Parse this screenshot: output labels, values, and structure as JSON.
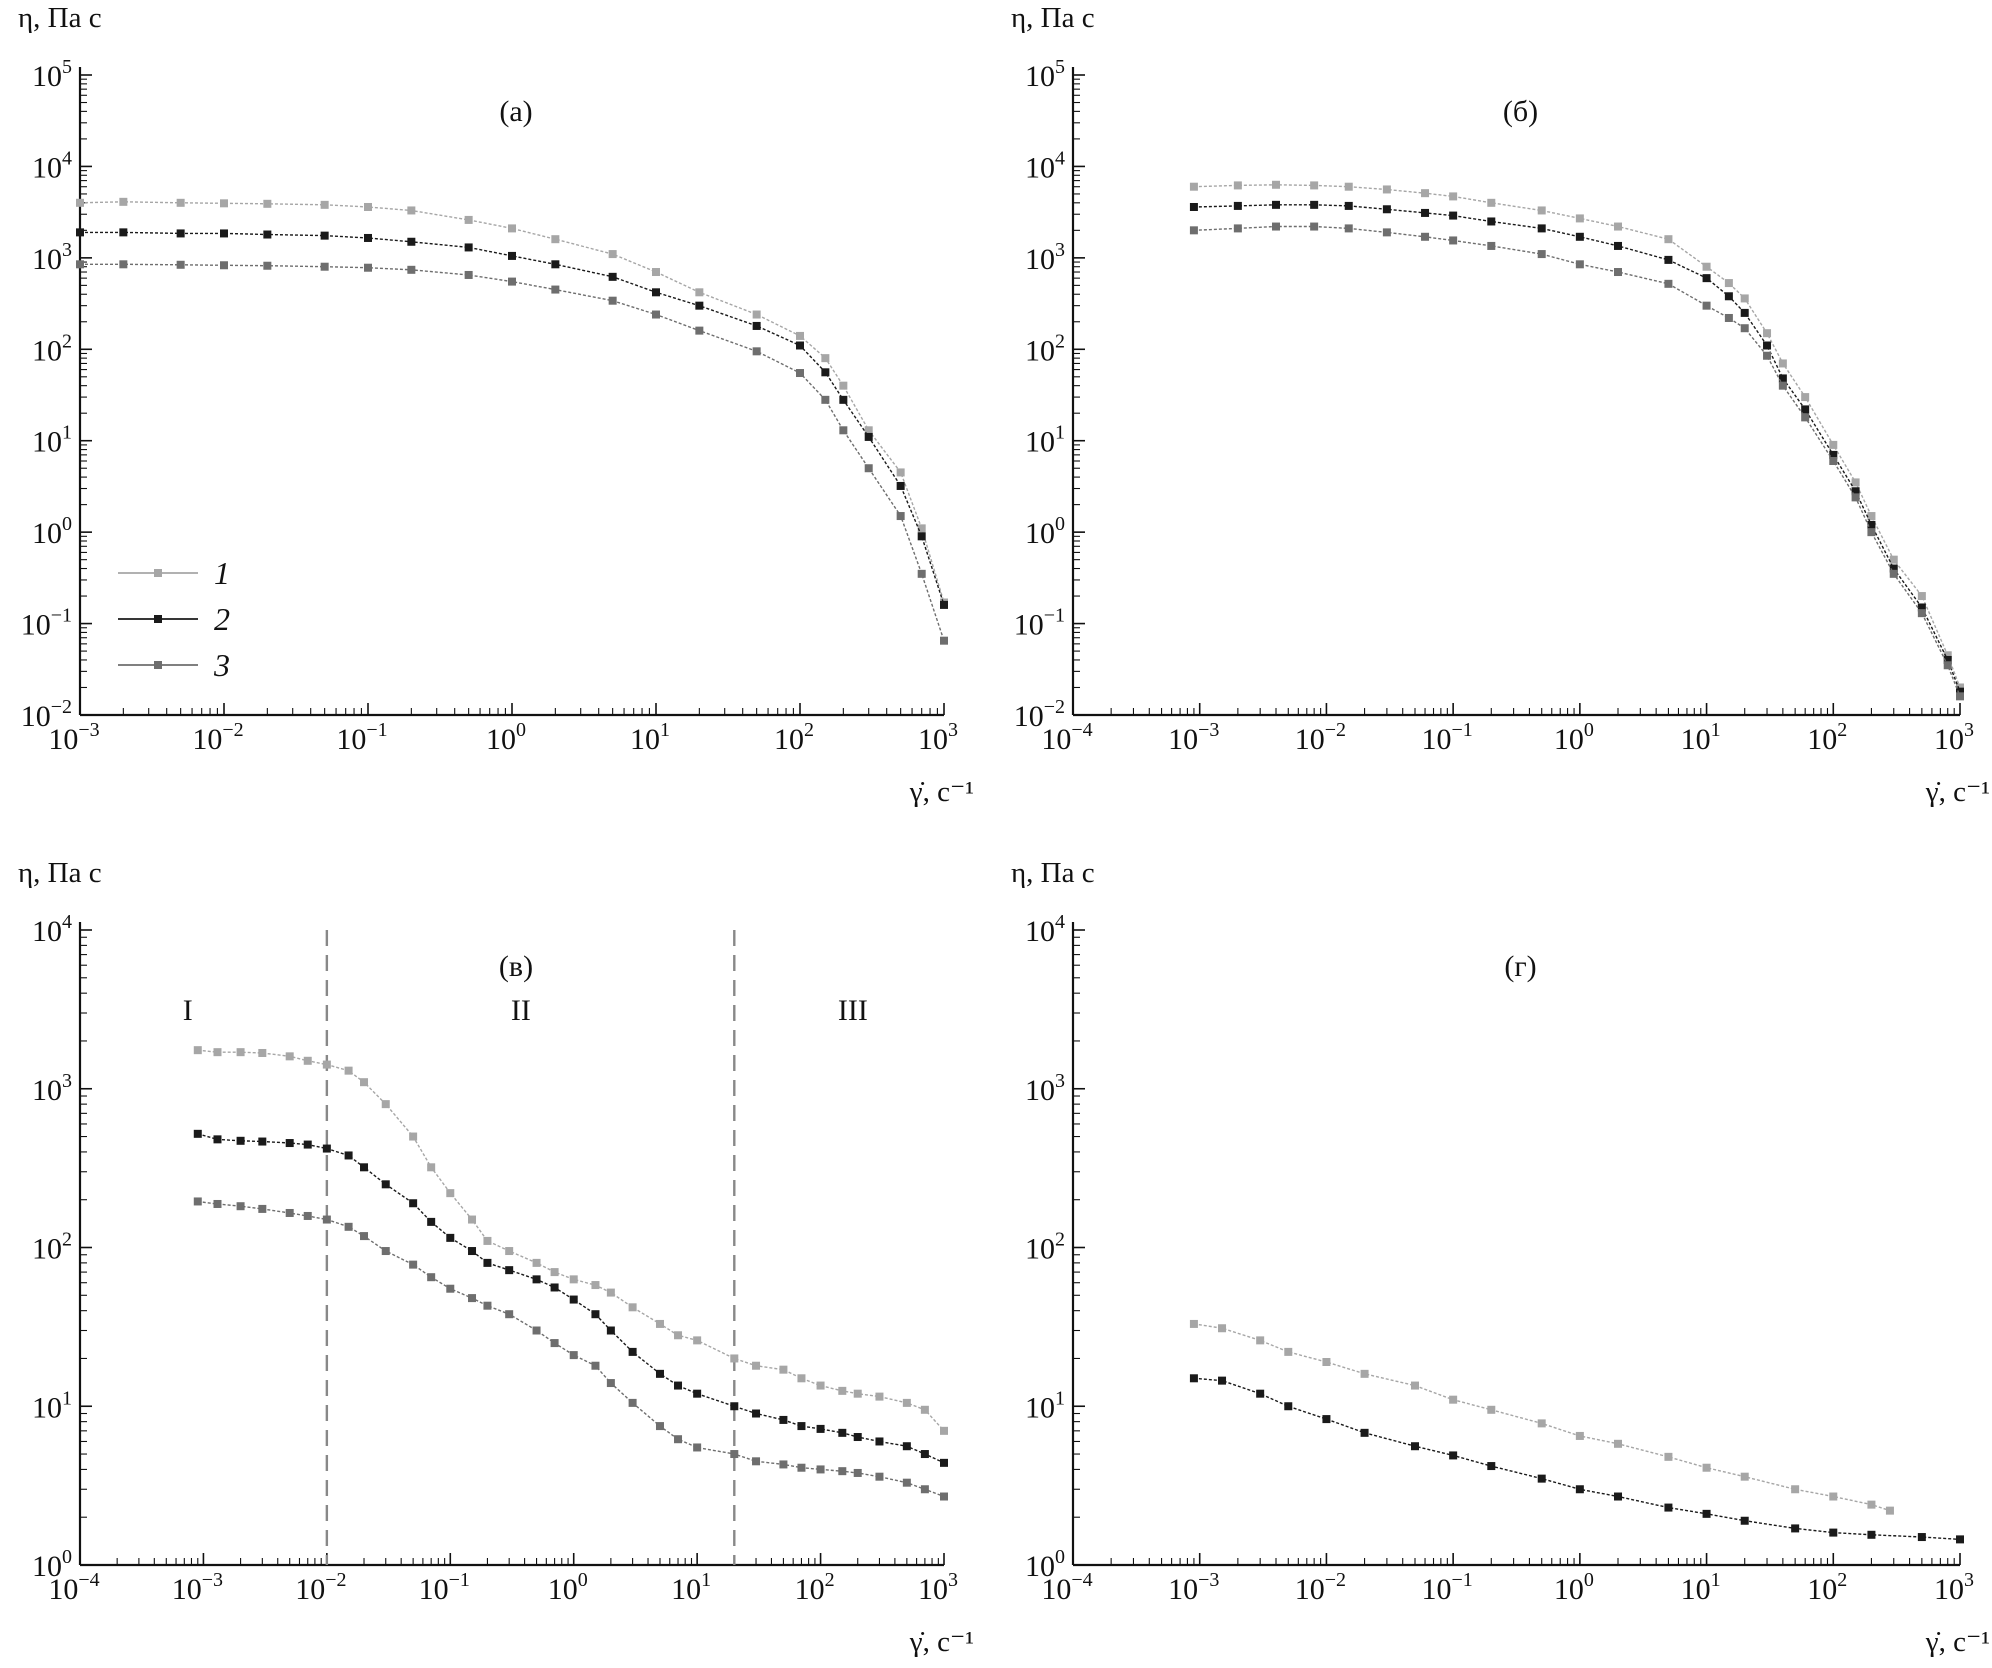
{
  "chart_data": [
    {
      "panel": "a",
      "type": "line",
      "title": "(а)",
      "ylabel": "η, Па с",
      "xlabel": "γ̇, с⁻¹",
      "x_scale": "log",
      "y_scale": "log",
      "xlim": [
        0.001,
        1000
      ],
      "ylim": [
        0.01,
        100000
      ],
      "x_ticks": [
        {
          "base": "10",
          "exp": "−3"
        },
        {
          "base": "10",
          "exp": "−2"
        },
        {
          "base": "10",
          "exp": "−1"
        },
        {
          "base": "10",
          "exp": "0"
        },
        {
          "base": "10",
          "exp": "1"
        },
        {
          "base": "10",
          "exp": "2"
        },
        {
          "base": "10",
          "exp": "3"
        }
      ],
      "y_ticks": [
        {
          "base": "10",
          "exp": "−2"
        },
        {
          "base": "10",
          "exp": "−1"
        },
        {
          "base": "10",
          "exp": "0"
        },
        {
          "base": "10",
          "exp": "1"
        },
        {
          "base": "10",
          "exp": "2"
        },
        {
          "base": "10",
          "exp": "3"
        },
        {
          "base": "10",
          "exp": "4"
        },
        {
          "base": "10",
          "exp": "5"
        }
      ],
      "legend": {
        "position": "bottom-left",
        "entries": [
          "1",
          "2",
          "3"
        ]
      },
      "series": [
        {
          "name": "1",
          "color": "#a6a6a6",
          "x": [
            0.001,
            0.002,
            0.005,
            0.01,
            0.02,
            0.05,
            0.1,
            0.2,
            0.5,
            1,
            2,
            5,
            10,
            20,
            50,
            100,
            150,
            200,
            300,
            500,
            700,
            1000
          ],
          "y": [
            4000,
            4100,
            4000,
            3950,
            3900,
            3800,
            3600,
            3300,
            2600,
            2100,
            1600,
            1100,
            700,
            420,
            240,
            140,
            80,
            40,
            13,
            4.5,
            1.1,
            0.17
          ]
        },
        {
          "name": "2",
          "color": "#1a1a1a",
          "x": [
            0.001,
            0.002,
            0.005,
            0.01,
            0.02,
            0.05,
            0.1,
            0.2,
            0.5,
            1,
            2,
            5,
            10,
            20,
            50,
            100,
            150,
            200,
            300,
            500,
            700,
            1000
          ],
          "y": [
            1900,
            1900,
            1850,
            1850,
            1800,
            1750,
            1650,
            1500,
            1300,
            1050,
            850,
            620,
            420,
            300,
            180,
            110,
            56,
            28,
            11,
            3.2,
            0.9,
            0.16
          ]
        },
        {
          "name": "3",
          "color": "#6e6e6e",
          "x": [
            0.001,
            0.002,
            0.005,
            0.01,
            0.02,
            0.05,
            0.1,
            0.2,
            0.5,
            1,
            2,
            5,
            10,
            20,
            50,
            100,
            150,
            200,
            300,
            500,
            700,
            1000
          ],
          "y": [
            850,
            850,
            840,
            830,
            820,
            800,
            780,
            740,
            650,
            550,
            450,
            340,
            240,
            160,
            95,
            55,
            28,
            13,
            5,
            1.5,
            0.35,
            0.065
          ]
        }
      ]
    },
    {
      "panel": "b",
      "type": "line",
      "title": "(б)",
      "ylabel": "η, Па с",
      "xlabel": "γ̇, с⁻¹",
      "x_scale": "log",
      "y_scale": "log",
      "xlim": [
        0.0001,
        1000
      ],
      "ylim": [
        0.01,
        100000
      ],
      "x_ticks": [
        {
          "base": "10",
          "exp": "−4"
        },
        {
          "base": "10",
          "exp": "−3"
        },
        {
          "base": "10",
          "exp": "−2"
        },
        {
          "base": "10",
          "exp": "−1"
        },
        {
          "base": "10",
          "exp": "0"
        },
        {
          "base": "10",
          "exp": "1"
        },
        {
          "base": "10",
          "exp": "2"
        },
        {
          "base": "10",
          "exp": "3"
        }
      ],
      "y_ticks": [
        {
          "base": "10",
          "exp": "−2"
        },
        {
          "base": "10",
          "exp": "−1"
        },
        {
          "base": "10",
          "exp": "0"
        },
        {
          "base": "10",
          "exp": "1"
        },
        {
          "base": "10",
          "exp": "2"
        },
        {
          "base": "10",
          "exp": "3"
        },
        {
          "base": "10",
          "exp": "4"
        },
        {
          "base": "10",
          "exp": "5"
        }
      ],
      "series": [
        {
          "name": "1",
          "color": "#a6a6a6",
          "x": [
            0.0009,
            0.002,
            0.004,
            0.008,
            0.015,
            0.03,
            0.06,
            0.1,
            0.2,
            0.5,
            1,
            2,
            5,
            10,
            15,
            20,
            30,
            40,
            60,
            100,
            150,
            200,
            300,
            500,
            800,
            1000
          ],
          "y": [
            6000,
            6200,
            6300,
            6200,
            6000,
            5600,
            5100,
            4700,
            4000,
            3300,
            2700,
            2200,
            1600,
            800,
            530,
            360,
            150,
            70,
            30,
            9,
            3.5,
            1.5,
            0.5,
            0.2,
            0.045,
            0.02
          ]
        },
        {
          "name": "2",
          "color": "#1a1a1a",
          "x": [
            0.0009,
            0.002,
            0.004,
            0.008,
            0.015,
            0.03,
            0.06,
            0.1,
            0.2,
            0.5,
            1,
            2,
            5,
            10,
            15,
            20,
            30,
            40,
            60,
            100,
            150,
            200,
            300,
            500,
            800,
            1000
          ],
          "y": [
            3600,
            3700,
            3800,
            3800,
            3700,
            3400,
            3100,
            2900,
            2500,
            2100,
            1700,
            1350,
            950,
            600,
            380,
            250,
            110,
            48,
            22,
            7,
            2.8,
            1.2,
            0.4,
            0.15,
            0.04,
            0.018
          ]
        },
        {
          "name": "3",
          "color": "#6e6e6e",
          "x": [
            0.0009,
            0.002,
            0.004,
            0.008,
            0.015,
            0.03,
            0.06,
            0.1,
            0.2,
            0.5,
            1,
            2,
            5,
            10,
            15,
            20,
            30,
            40,
            60,
            100,
            150,
            200,
            300,
            500,
            800,
            1000
          ],
          "y": [
            2000,
            2100,
            2200,
            2200,
            2100,
            1900,
            1700,
            1550,
            1350,
            1100,
            850,
            700,
            520,
            300,
            220,
            170,
            85,
            40,
            18,
            6,
            2.4,
            1,
            0.35,
            0.13,
            0.035,
            0.016
          ]
        }
      ]
    },
    {
      "panel": "c",
      "type": "line",
      "title": "(в)",
      "ylabel": "η, Па с",
      "xlabel": "γ̇, с⁻¹",
      "x_scale": "log",
      "y_scale": "log",
      "xlim": [
        0.0001,
        1000
      ],
      "ylim": [
        1,
        10000
      ],
      "x_ticks": [
        {
          "base": "10",
          "exp": "−4"
        },
        {
          "base": "10",
          "exp": "−3"
        },
        {
          "base": "10",
          "exp": "−2"
        },
        {
          "base": "10",
          "exp": "−1"
        },
        {
          "base": "10",
          "exp": "0"
        },
        {
          "base": "10",
          "exp": "1"
        },
        {
          "base": "10",
          "exp": "2"
        },
        {
          "base": "10",
          "exp": "3"
        }
      ],
      "y_ticks": [
        {
          "base": "10",
          "exp": "0"
        },
        {
          "base": "10",
          "exp": "1"
        },
        {
          "base": "10",
          "exp": "2"
        },
        {
          "base": "10",
          "exp": "3"
        },
        {
          "base": "10",
          "exp": "4"
        }
      ],
      "regions": [
        {
          "label": "I",
          "x": 0.0009
        },
        {
          "label": "II",
          "x": 0.45
        },
        {
          "label": "III",
          "x": 220
        }
      ],
      "vlines": [
        0.01,
        20
      ],
      "series": [
        {
          "name": "1",
          "color": "#a6a6a6",
          "x": [
            0.0009,
            0.0013,
            0.002,
            0.003,
            0.005,
            0.007,
            0.01,
            0.015,
            0.02,
            0.03,
            0.05,
            0.07,
            0.1,
            0.15,
            0.2,
            0.3,
            0.5,
            0.7,
            1,
            1.5,
            2,
            3,
            5,
            7,
            10,
            20,
            30,
            50,
            70,
            100,
            150,
            200,
            300,
            500,
            700,
            1000
          ],
          "y": [
            1750,
            1700,
            1700,
            1680,
            1600,
            1500,
            1420,
            1300,
            1100,
            800,
            500,
            320,
            220,
            150,
            110,
            95,
            80,
            70,
            63,
            58,
            52,
            42,
            33,
            28,
            26,
            20,
            18,
            17,
            15,
            13.5,
            12.5,
            12,
            11.5,
            10.5,
            9.5,
            7
          ]
        },
        {
          "name": "2",
          "color": "#1a1a1a",
          "x": [
            0.0009,
            0.0013,
            0.002,
            0.003,
            0.005,
            0.007,
            0.01,
            0.015,
            0.02,
            0.03,
            0.05,
            0.07,
            0.1,
            0.15,
            0.2,
            0.3,
            0.5,
            0.7,
            1,
            1.5,
            2,
            3,
            5,
            7,
            10,
            20,
            30,
            50,
            70,
            100,
            150,
            200,
            300,
            500,
            700,
            1000
          ],
          "y": [
            520,
            480,
            470,
            465,
            455,
            445,
            420,
            380,
            320,
            250,
            190,
            145,
            115,
            95,
            80,
            72,
            63,
            56,
            47,
            38,
            30,
            22,
            16,
            13.5,
            12,
            10,
            9,
            8.2,
            7.5,
            7.2,
            6.8,
            6.4,
            6,
            5.6,
            5,
            4.4
          ]
        },
        {
          "name": "3",
          "color": "#6e6e6e",
          "x": [
            0.0009,
            0.0013,
            0.002,
            0.003,
            0.005,
            0.007,
            0.01,
            0.015,
            0.02,
            0.03,
            0.05,
            0.07,
            0.1,
            0.15,
            0.2,
            0.3,
            0.5,
            0.7,
            1,
            1.5,
            2,
            3,
            5,
            7,
            10,
            20,
            30,
            50,
            70,
            100,
            150,
            200,
            300,
            500,
            700,
            1000
          ],
          "y": [
            195,
            188,
            182,
            175,
            165,
            158,
            150,
            135,
            118,
            95,
            78,
            65,
            55,
            48,
            43,
            38,
            30,
            25,
            21,
            18,
            14,
            10.5,
            7.5,
            6.2,
            5.5,
            5,
            4.5,
            4.3,
            4.1,
            4,
            3.9,
            3.8,
            3.6,
            3.3,
            3,
            2.7
          ]
        }
      ]
    },
    {
      "panel": "d",
      "type": "line",
      "title": "(г)",
      "ylabel": "η, Па с",
      "xlabel": "γ̇, с⁻¹",
      "x_scale": "log",
      "y_scale": "log",
      "xlim": [
        0.0001,
        1000
      ],
      "ylim": [
        1,
        10000
      ],
      "x_ticks": [
        {
          "base": "10",
          "exp": "−4"
        },
        {
          "base": "10",
          "exp": "−3"
        },
        {
          "base": "10",
          "exp": "−2"
        },
        {
          "base": "10",
          "exp": "−1"
        },
        {
          "base": "10",
          "exp": "0"
        },
        {
          "base": "10",
          "exp": "1"
        },
        {
          "base": "10",
          "exp": "2"
        },
        {
          "base": "10",
          "exp": "3"
        }
      ],
      "y_ticks": [
        {
          "base": "10",
          "exp": "0"
        },
        {
          "base": "10",
          "exp": "1"
        },
        {
          "base": "10",
          "exp": "2"
        },
        {
          "base": "10",
          "exp": "3"
        },
        {
          "base": "10",
          "exp": "4"
        }
      ],
      "series": [
        {
          "name": "1",
          "color": "#a6a6a6",
          "x": [
            0.0009,
            0.0015,
            0.003,
            0.005,
            0.01,
            0.02,
            0.05,
            0.1,
            0.2,
            0.5,
            1,
            2,
            5,
            10,
            20,
            50,
            100,
            200,
            280
          ],
          "y": [
            33,
            31,
            26,
            22,
            19,
            16,
            13.5,
            11,
            9.5,
            7.8,
            6.5,
            5.8,
            4.8,
            4.1,
            3.6,
            3,
            2.7,
            2.4,
            2.2
          ]
        },
        {
          "name": "2",
          "color": "#1a1a1a",
          "x": [
            0.0009,
            0.0015,
            0.003,
            0.005,
            0.01,
            0.02,
            0.05,
            0.1,
            0.2,
            0.5,
            1,
            2,
            5,
            10,
            20,
            50,
            100,
            200,
            500,
            1000
          ],
          "y": [
            15,
            14.5,
            12,
            10,
            8.3,
            6.8,
            5.6,
            4.9,
            4.2,
            3.5,
            3,
            2.7,
            2.3,
            2.1,
            1.9,
            1.7,
            1.6,
            1.55,
            1.5,
            1.45
          ]
        }
      ]
    }
  ]
}
